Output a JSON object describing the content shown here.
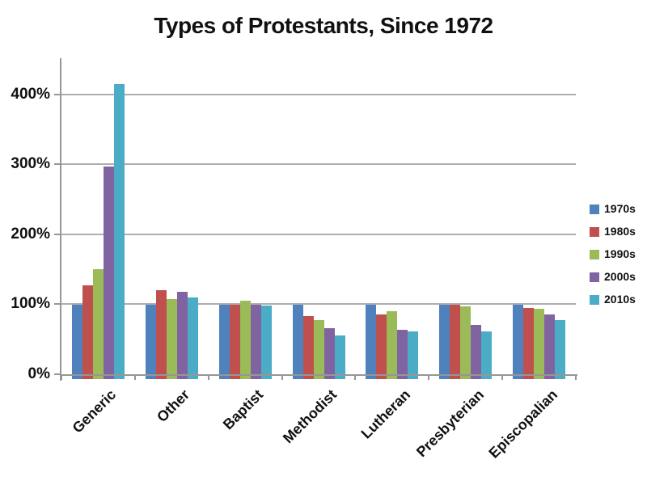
{
  "title": "Types of Protestants, Since 1972",
  "chart_data": {
    "type": "bar",
    "title": "Types of Protestants, Since 1972",
    "xlabel": "",
    "ylabel": "",
    "categories": [
      "Generic",
      "Other",
      "Baptist",
      "Methodist",
      "Lutheran",
      "Presbyterian",
      "Episcopalian"
    ],
    "series": [
      {
        "name": "1970s",
        "color": "#4F81BD",
        "values": [
          100,
          100,
          100,
          100,
          100,
          100,
          100
        ]
      },
      {
        "name": "1980s",
        "color": "#C0504D",
        "values": [
          127,
          120,
          100,
          83,
          86,
          99,
          95
        ]
      },
      {
        "name": "1990s",
        "color": "#9BBB59",
        "values": [
          150,
          108,
          105,
          78,
          90,
          97,
          94
        ]
      },
      {
        "name": "2000s",
        "color": "#8064A2",
        "values": [
          297,
          118,
          99,
          66,
          64,
          70,
          86
        ]
      },
      {
        "name": "2010s",
        "color": "#4BACC6",
        "values": [
          415,
          110,
          98,
          55,
          61,
          61,
          78
        ]
      }
    ],
    "y_tick_labels": [
      "0%",
      "100%",
      "200%",
      "300%",
      "400%"
    ],
    "y_tick_values": [
      0,
      100,
      200,
      300,
      400
    ],
    "ylim": [
      0,
      452
    ],
    "grid": true,
    "legend_position": "right",
    "axis_color": "#969696",
    "gridline_color": "#AEAEAE",
    "background_color": "#FFFFFF"
  }
}
